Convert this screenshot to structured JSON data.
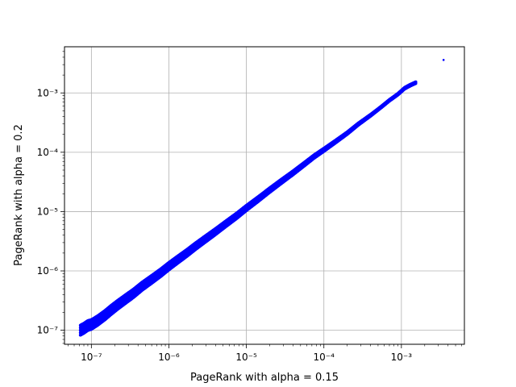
{
  "chart_data": {
    "type": "scatter",
    "title": "",
    "xlabel": "PageRank with alpha = 0.15",
    "ylabel": "PageRank with alpha = 0.2",
    "xscale": "log",
    "yscale": "log",
    "xlim": [
      4.5e-08,
      0.0065
    ],
    "ylim": [
      5.8e-08,
      0.006
    ],
    "grid": true,
    "marker_color": "#0000ff",
    "x_ticks": [
      {
        "value": 1e-07,
        "label": "10⁻⁷"
      },
      {
        "value": 1e-06,
        "label": "10⁻⁶"
      },
      {
        "value": 1e-05,
        "label": "10⁻⁵"
      },
      {
        "value": 0.0001,
        "label": "10⁻⁴"
      },
      {
        "value": 0.001,
        "label": "10⁻³"
      }
    ],
    "y_ticks": [
      {
        "value": 1e-07,
        "label": "10⁻⁷"
      },
      {
        "value": 1e-06,
        "label": "10⁻⁶"
      },
      {
        "value": 1e-05,
        "label": "10⁻⁵"
      },
      {
        "value": 0.0001,
        "label": "10⁻⁴"
      },
      {
        "value": 0.001,
        "label": "10⁻³"
      }
    ],
    "series": [
      {
        "points": [
          [
            7.2e-08,
            1e-07
          ],
          [
            8e-08,
            1.08e-07
          ],
          [
            9e-08,
            1.2e-07
          ],
          [
            1e-07,
            1.25e-07
          ],
          [
            1.2e-07,
            1.45e-07
          ],
          [
            1.5e-07,
            1.8e-07
          ],
          [
            1.8e-07,
            2.2e-07
          ],
          [
            2.2e-07,
            2.7e-07
          ],
          [
            2.8e-07,
            3.4e-07
          ],
          [
            3.5e-07,
            4.2e-07
          ],
          [
            4.5e-07,
            5.5e-07
          ],
          [
            6e-07,
            7.2e-07
          ],
          [
            8e-07,
            9.5e-07
          ],
          [
            1e-06,
            1.2e-06
          ],
          [
            1.3e-06,
            1.55e-06
          ],
          [
            1.7e-06,
            2e-06
          ],
          [
            2.2e-06,
            2.6e-06
          ],
          [
            3e-06,
            3.5e-06
          ],
          [
            4e-06,
            4.6e-06
          ],
          [
            5.5e-06,
            6.3e-06
          ],
          [
            7.5e-06,
            8.5e-06
          ],
          [
            1e-05,
            1.15e-05
          ],
          [
            1.4e-05,
            1.6e-05
          ],
          [
            2e-05,
            2.3e-05
          ],
          [
            2.8e-05,
            3.2e-05
          ],
          [
            4e-05,
            4.5e-05
          ],
          [
            5.5e-05,
            6.2e-05
          ],
          [
            7.5e-05,
            8.5e-05
          ],
          [
            0.0001,
            0.00011
          ],
          [
            0.00014,
            0.00015
          ],
          [
            0.0002,
            0.00021
          ],
          [
            0.00028,
            0.0003
          ],
          [
            0.0004,
            0.00042
          ],
          [
            0.00055,
            0.00058
          ],
          [
            0.0007,
            0.00075
          ],
          [
            0.0009,
            0.00095
          ],
          [
            0.0011,
            0.0012
          ],
          [
            0.0013,
            0.00135
          ],
          [
            0.00155,
            0.0015
          ],
          [
            0.0035,
            0.0036
          ]
        ]
      }
    ]
  }
}
